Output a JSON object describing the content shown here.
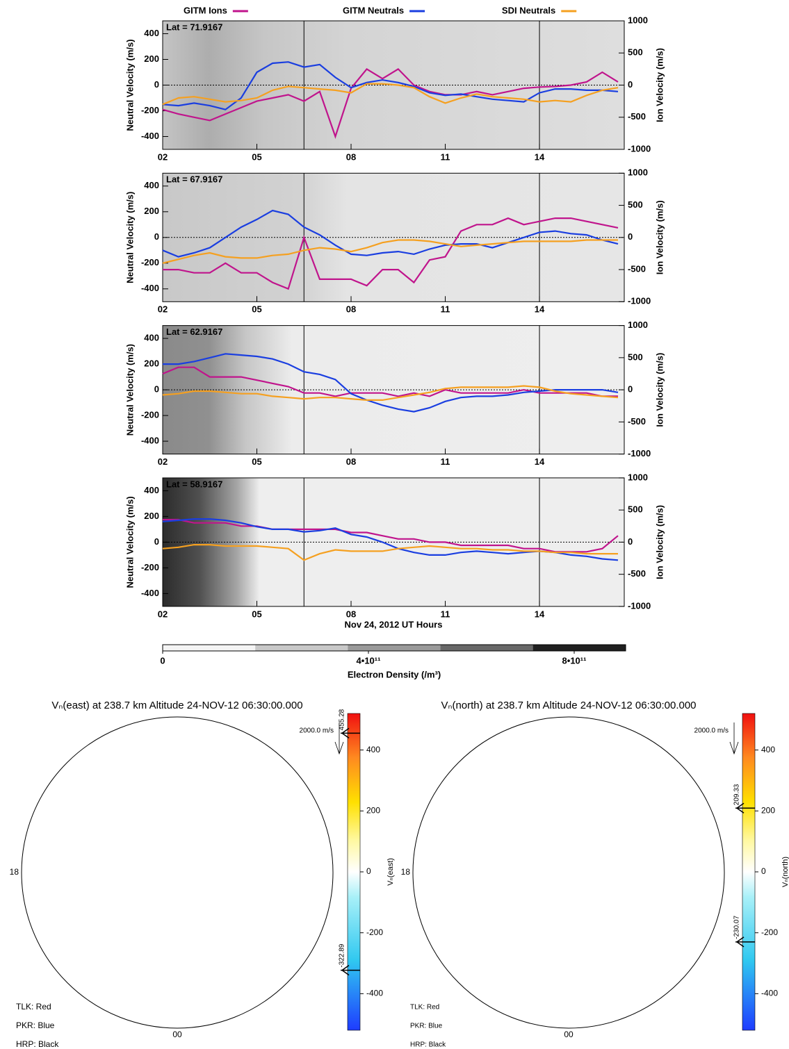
{
  "chart_data": [
    {
      "type": "line",
      "legend": "top",
      "annotation": "Lat =  71.9167",
      "ylabel": "Neutral Velocity (m/s)",
      "y2label": "Ion Velocity (m/s)",
      "xlim": [
        2,
        16.7
      ],
      "xticks": [
        {
          "value": 2,
          "label": "02"
        },
        {
          "value": 5,
          "label": "05"
        },
        {
          "value": 8,
          "label": "08"
        },
        {
          "value": 11,
          "label": "11"
        },
        {
          "value": 14,
          "label": "14"
        }
      ],
      "ylim": [
        -500,
        500
      ],
      "yticks": [
        400,
        200,
        0,
        -200,
        -400
      ],
      "y2lim": [
        -1000,
        1000
      ],
      "y2ticks": [
        1000,
        500,
        0,
        -500,
        -1000
      ],
      "vlines": [
        6.5,
        14
      ],
      "zero_line": true,
      "x": [
        2,
        2.5,
        3,
        3.5,
        4,
        4.5,
        5,
        5.5,
        6,
        6.5,
        7,
        7.5,
        8,
        8.5,
        9,
        9.5,
        10,
        10.5,
        11,
        11.5,
        12,
        12.5,
        13,
        13.5,
        14,
        14.5,
        15,
        15.5,
        16,
        16.5
      ],
      "series": [
        {
          "name": "GITM Ions",
          "color": "#c0148c",
          "axis": "y2",
          "values": [
            -380,
            -450,
            -500,
            -550,
            -450,
            -350,
            -250,
            -200,
            -150,
            -250,
            -100,
            -800,
            -50,
            250,
            100,
            250,
            0,
            -100,
            -150,
            -150,
            -100,
            -150,
            -100,
            -50,
            -30,
            -20,
            0,
            50,
            200,
            50
          ]
        },
        {
          "name": "GITM Neutrals",
          "color": "#1a3ee0",
          "values": [
            -150,
            -160,
            -140,
            -160,
            -190,
            -100,
            100,
            170,
            180,
            140,
            160,
            60,
            -20,
            20,
            40,
            20,
            -10,
            -60,
            -80,
            -70,
            -90,
            -110,
            -120,
            -130,
            -60,
            -30,
            -30,
            -40,
            -40,
            -50
          ]
        },
        {
          "name": "SDI Neutrals",
          "color": "#f5a020",
          "values": [
            -150,
            -100,
            -90,
            -110,
            -130,
            -120,
            -100,
            -40,
            -10,
            -20,
            -30,
            -40,
            -60,
            10,
            10,
            0,
            -20,
            -90,
            -140,
            -100,
            -70,
            -90,
            -100,
            -110,
            -130,
            -120,
            -130,
            -80,
            -40,
            -20
          ]
        }
      ]
    },
    {
      "type": "line",
      "annotation": "Lat =  67.9167",
      "ylabel": "Neutral Velocity (m/s)",
      "y2label": "Ion Velocity (m/s)",
      "xlim": [
        2,
        16.7
      ],
      "xticks": [
        {
          "value": 2,
          "label": "02"
        },
        {
          "value": 5,
          "label": "05"
        },
        {
          "value": 8,
          "label": "08"
        },
        {
          "value": 11,
          "label": "11"
        },
        {
          "value": 14,
          "label": "14"
        }
      ],
      "ylim": [
        -500,
        500
      ],
      "yticks": [
        400,
        200,
        0,
        -200,
        -400
      ],
      "y2lim": [
        -1000,
        1000
      ],
      "y2ticks": [
        1000,
        500,
        0,
        -500,
        -1000
      ],
      "vlines": [
        6.5,
        14
      ],
      "zero_line": true,
      "x": [
        2,
        2.5,
        3,
        3.5,
        4,
        4.5,
        5,
        5.5,
        6,
        6.5,
        7,
        7.5,
        8,
        8.5,
        9,
        9.5,
        10,
        10.5,
        11,
        11.5,
        12,
        12.5,
        13,
        13.5,
        14,
        14.5,
        15,
        15.5,
        16,
        16.5
      ],
      "series": [
        {
          "color": "#c0148c",
          "axis": "y2",
          "values": [
            -500,
            -500,
            -550,
            -550,
            -400,
            -550,
            -550,
            -700,
            -800,
            0,
            -650,
            -650,
            -650,
            -750,
            -500,
            -500,
            -700,
            -350,
            -300,
            100,
            200,
            200,
            300,
            200,
            250,
            300,
            300,
            250,
            200,
            150
          ]
        },
        {
          "color": "#1a3ee0",
          "values": [
            -100,
            -150,
            -120,
            -80,
            0,
            80,
            140,
            210,
            180,
            80,
            20,
            -60,
            -130,
            -140,
            -120,
            -110,
            -130,
            -90,
            -60,
            -50,
            -50,
            -80,
            -40,
            0,
            40,
            50,
            30,
            20,
            -20,
            -50
          ]
        },
        {
          "color": "#f5a020",
          "values": [
            -200,
            -170,
            -140,
            -120,
            -150,
            -160,
            -160,
            -140,
            -130,
            -100,
            -80,
            -90,
            -110,
            -80,
            -40,
            -20,
            -20,
            -30,
            -50,
            -70,
            -60,
            -50,
            -40,
            -30,
            -30,
            -30,
            -30,
            -20,
            -20,
            -20
          ]
        }
      ]
    },
    {
      "type": "line",
      "annotation": "Lat =  62.9167",
      "ylabel": "Neutral Velocity (m/s)",
      "y2label": "Ion Velocity (m/s)",
      "xlim": [
        2,
        16.7
      ],
      "xticks": [
        {
          "value": 2,
          "label": "02"
        },
        {
          "value": 5,
          "label": "05"
        },
        {
          "value": 8,
          "label": "08"
        },
        {
          "value": 11,
          "label": "11"
        },
        {
          "value": 14,
          "label": "14"
        }
      ],
      "ylim": [
        -500,
        500
      ],
      "yticks": [
        400,
        200,
        0,
        -200,
        -400
      ],
      "y2lim": [
        -1000,
        1000
      ],
      "y2ticks": [
        1000,
        500,
        0,
        -500,
        -1000
      ],
      "vlines": [
        6.5,
        14
      ],
      "zero_line": true,
      "x": [
        2,
        2.5,
        3,
        3.5,
        4,
        4.5,
        5,
        5.5,
        6,
        6.5,
        7,
        7.5,
        8,
        8.5,
        9,
        9.5,
        10,
        10.5,
        11,
        11.5,
        12,
        12.5,
        13,
        13.5,
        14,
        14.5,
        15,
        15.5,
        16,
        16.5
      ],
      "series": [
        {
          "color": "#c0148c",
          "axis": "y2",
          "values": [
            250,
            350,
            350,
            200,
            200,
            200,
            150,
            100,
            50,
            -50,
            -50,
            -100,
            -50,
            -50,
            -50,
            -100,
            -50,
            -100,
            0,
            -50,
            -50,
            -50,
            -50,
            0,
            -50,
            -50,
            -50,
            -50,
            -100,
            -100
          ]
        },
        {
          "color": "#1a3ee0",
          "values": [
            200,
            200,
            220,
            250,
            280,
            270,
            260,
            240,
            200,
            140,
            120,
            80,
            -30,
            -80,
            -120,
            -150,
            -170,
            -140,
            -90,
            -60,
            -50,
            -50,
            -40,
            -20,
            -10,
            0,
            0,
            0,
            0,
            -20
          ]
        },
        {
          "color": "#f5a020",
          "values": [
            -40,
            -30,
            -10,
            -10,
            -20,
            -30,
            -30,
            -50,
            -60,
            -70,
            -60,
            -60,
            -70,
            -80,
            -80,
            -60,
            -40,
            -20,
            10,
            20,
            20,
            20,
            20,
            30,
            20,
            -10,
            -30,
            -40,
            -50,
            -60
          ]
        }
      ]
    },
    {
      "type": "line",
      "annotation": "Lat =  58.9167",
      "ylabel": "Neutral Velocity (m/s)",
      "y2label": "Ion Velocity (m/s)",
      "xlabel": "Nov 24, 2012 UT Hours",
      "xlim": [
        2,
        16.7
      ],
      "xticks": [
        {
          "value": 2,
          "label": "02"
        },
        {
          "value": 5,
          "label": "05"
        },
        {
          "value": 8,
          "label": "08"
        },
        {
          "value": 11,
          "label": "11"
        },
        {
          "value": 14,
          "label": "14"
        }
      ],
      "ylim": [
        -500,
        500
      ],
      "yticks": [
        400,
        200,
        0,
        -200,
        -400
      ],
      "y2lim": [
        -1000,
        1000
      ],
      "y2ticks": [
        1000,
        500,
        0,
        -500,
        -1000
      ],
      "vlines": [
        6.5,
        14
      ],
      "zero_line": true,
      "x": [
        2,
        2.5,
        3,
        3.5,
        4,
        4.5,
        5,
        5.5,
        6,
        6.5,
        7,
        7.5,
        8,
        8.5,
        9,
        9.5,
        10,
        10.5,
        11,
        11.5,
        12,
        12.5,
        13,
        13.5,
        14,
        14.5,
        15,
        15.5,
        16,
        16.5
      ],
      "series": [
        {
          "color": "#c0148c",
          "axis": "y2",
          "values": [
            350,
            350,
            300,
            300,
            300,
            250,
            250,
            200,
            200,
            200,
            200,
            200,
            150,
            150,
            100,
            50,
            50,
            0,
            0,
            -50,
            -50,
            -50,
            -50,
            -100,
            -100,
            -150,
            -150,
            -150,
            -100,
            100
          ]
        },
        {
          "color": "#1a3ee0",
          "values": [
            160,
            170,
            180,
            180,
            170,
            150,
            120,
            100,
            100,
            80,
            90,
            110,
            60,
            40,
            0,
            -50,
            -80,
            -100,
            -100,
            -80,
            -70,
            -80,
            -90,
            -80,
            -70,
            -80,
            -100,
            -110,
            -130,
            -140
          ]
        },
        {
          "color": "#f5a020",
          "values": [
            -50,
            -40,
            -20,
            -20,
            -30,
            -30,
            -30,
            -40,
            -50,
            -140,
            -90,
            -60,
            -70,
            -70,
            -70,
            -50,
            -40,
            -30,
            -40,
            -50,
            -50,
            -60,
            -60,
            -70,
            -70,
            -80,
            -80,
            -90,
            -90,
            -90
          ]
        }
      ]
    },
    {
      "type": "colorbar",
      "xlabel": "Electron Density (/m³)",
      "xlim": [
        0,
        900000000000
      ],
      "xticks": [
        0,
        {
          "value": 400000000000,
          "label": "4•10¹¹"
        },
        {
          "value": 800000000000,
          "label": "8•10¹¹"
        }
      ],
      "colors": [
        "#f4f4f4",
        "#c8c8c8",
        "#9a9a9a",
        "#686868",
        "#202020"
      ]
    },
    {
      "type": "polar",
      "title": "Vₙ(east) at 238.7 km Altitude 24-NOV-12 06:30:00.000",
      "colorbar_label": "Vₙ(east)",
      "clim": [
        -520,
        520
      ],
      "cticks": [
        400,
        200,
        0,
        -200,
        -400
      ],
      "max_label": "455.28",
      "max_value": 455.28,
      "min_label": "-322.89",
      "min_value": -322.89,
      "vector_scale": "2000.0 m/s",
      "hour_labels": [
        "18",
        "00"
      ],
      "stations": [
        "TLK: Red",
        "PKR: Blue",
        "HRP: Black"
      ]
    },
    {
      "type": "polar",
      "title": "Vₙ(north) at 238.7 km Altitude 24-NOV-12 06:30:00.000",
      "colorbar_label": "Vₙ(north)",
      "clim": [
        -520,
        520
      ],
      "cticks": [
        400,
        200,
        0,
        -200,
        -400
      ],
      "max_label": "209.33",
      "max_value": 209.33,
      "min_label": "-230.07",
      "min_value": -230.07,
      "vector_scale": "2000.0 m/s",
      "hour_labels": [
        "18",
        "00"
      ],
      "stations": [
        "TLK: Red",
        "PKR: Blue",
        "HRP: Black"
      ]
    }
  ]
}
